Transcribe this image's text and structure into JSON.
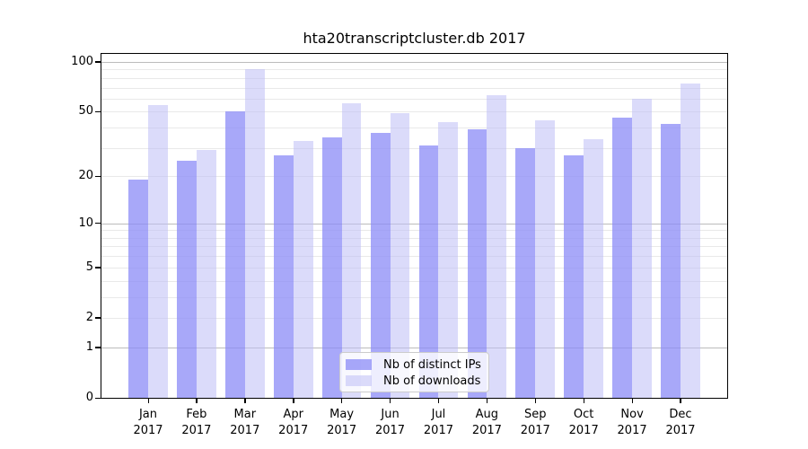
{
  "chart_data": {
    "type": "bar",
    "title": "hta20transcriptcluster.db 2017",
    "months": [
      "Jan",
      "Feb",
      "Mar",
      "Apr",
      "May",
      "Jun",
      "Jul",
      "Aug",
      "Sep",
      "Oct",
      "Nov",
      "Dec"
    ],
    "year_label": "2017",
    "series": [
      {
        "name": "Nb of distinct IPs",
        "values": [
          19,
          25,
          50,
          27,
          35,
          37,
          31,
          39,
          30,
          27,
          46,
          42
        ],
        "color": "rgba(139,139,247,0.75)"
      },
      {
        "name": "Nb of downloads",
        "values": [
          55,
          29,
          90,
          33,
          56,
          49,
          43,
          63,
          44,
          34,
          60,
          74
        ],
        "color": "rgba(190,190,246,0.55)"
      }
    ],
    "y_scale": "log1p",
    "y_tick_labels": [
      "100",
      "50",
      "20",
      "10",
      "5",
      "2",
      "1",
      "0"
    ],
    "y_tick_values": [
      100,
      50,
      20,
      10,
      5,
      2,
      1,
      0
    ],
    "major_gridlines": [
      1,
      10,
      100
    ],
    "minor_gridlines": [
      2,
      3,
      4,
      5,
      6,
      7,
      8,
      9,
      20,
      30,
      40,
      50,
      60,
      70,
      80,
      90
    ],
    "ylim": [
      0,
      112
    ],
    "grid": true,
    "legend_position": "lower center",
    "xlabel": "",
    "ylabel": ""
  },
  "colors": {
    "background": "#ffffff",
    "axis": "#000000",
    "text": "#000000",
    "major_gridline": "#bcbcbc",
    "minor_gridline": "#e9e9e9",
    "legend_border": "#cccccc",
    "legend_background": "rgba(255,255,255,0.8)"
  }
}
